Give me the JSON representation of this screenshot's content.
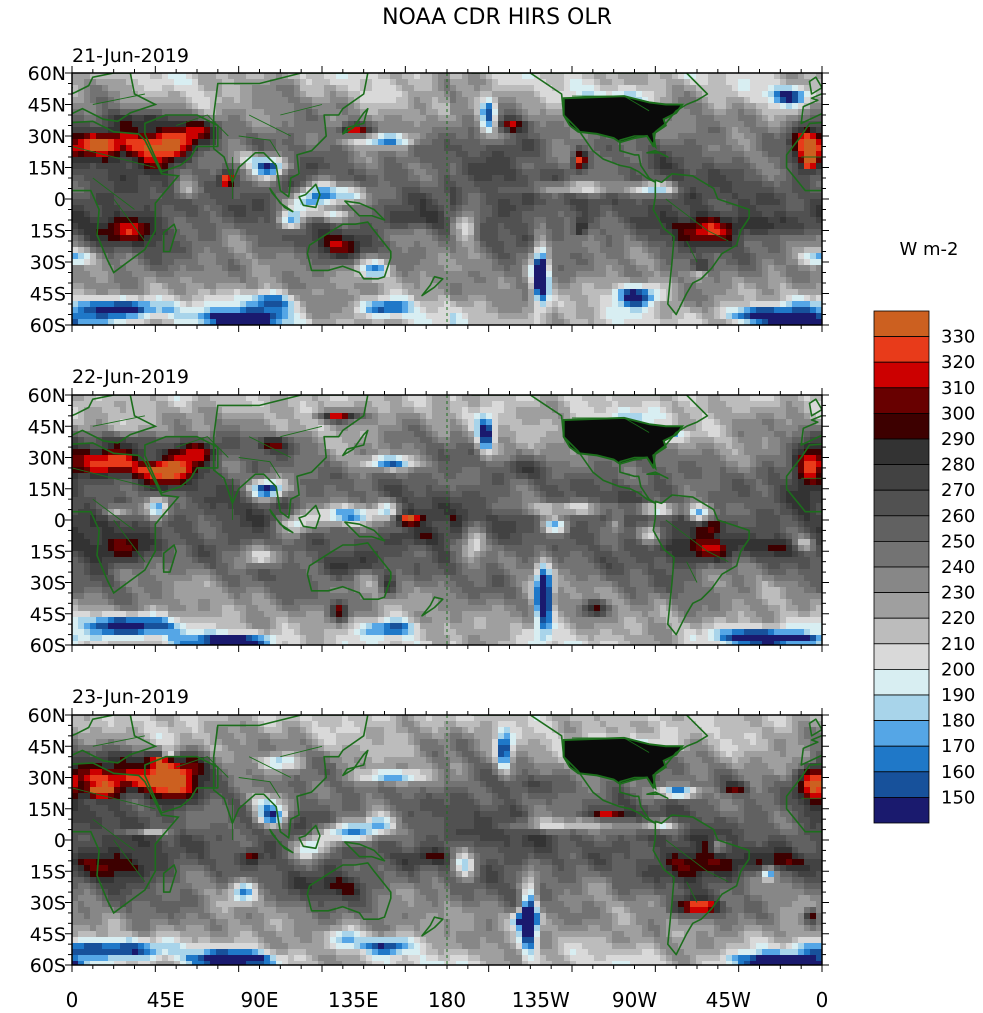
{
  "title": "NOAA CDR HIRS OLR",
  "units": "W m-2",
  "panels": [
    {
      "date": "21-Jun-2019",
      "seed": 11
    },
    {
      "date": "22-Jun-2019",
      "seed": 23
    },
    {
      "date": "23-Jun-2019",
      "seed": 37
    }
  ],
  "lat_labels": [
    "60N",
    "45N",
    "30N",
    "15N",
    "0",
    "15S",
    "30S",
    "45S",
    "60S"
  ],
  "lon_labels": [
    "0",
    "45E",
    "90E",
    "135E",
    "180",
    "135W",
    "90W",
    "45W",
    "0"
  ],
  "colorbar": {
    "levels": [
      "150",
      "160",
      "170",
      "180",
      "190",
      "200",
      "210",
      "220",
      "230",
      "240",
      "250",
      "260",
      "270",
      "280",
      "290",
      "300",
      "310",
      "320",
      "330"
    ],
    "colors": [
      "#1a1a6e",
      "#17519b",
      "#1f78c8",
      "#55a6e6",
      "#a8d4ea",
      "#d8eef2",
      "#d9d9d9",
      "#bcbcbc",
      "#9f9f9f",
      "#878787",
      "#737373",
      "#616161",
      "#515151",
      "#424242",
      "#333333",
      "#3d0000",
      "#680000",
      "#cc0000",
      "#e83b1a",
      "#cc6020"
    ]
  },
  "colors": {
    "coast": "#1c6e1c",
    "usa_fill": "#0a0a0a"
  }
}
